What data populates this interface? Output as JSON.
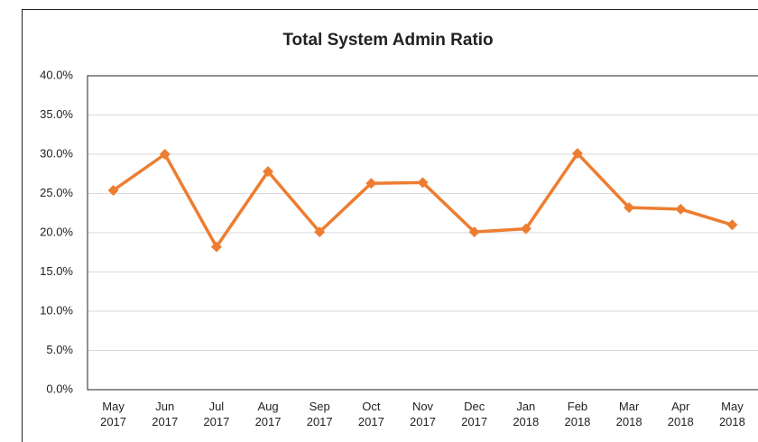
{
  "chart_data": {
    "type": "line",
    "title": "Total System Admin Ratio",
    "categories": [
      "May 2017",
      "Jun 2017",
      "Jul 2017",
      "Aug 2017",
      "Sep 2017",
      "Oct 2017",
      "Nov 2017",
      "Dec 2017",
      "Jan 2018",
      "Feb 2018",
      "Mar 2018",
      "Apr 2018",
      "May 2018"
    ],
    "values": [
      25.4,
      30.0,
      18.2,
      27.8,
      20.1,
      26.3,
      26.4,
      20.1,
      20.5,
      30.1,
      23.2,
      23.0,
      21.0
    ],
    "color": "#ed7d31",
    "ylim": [
      0,
      40
    ],
    "yticks": [
      {
        "value": 0,
        "label": "0.0%"
      },
      {
        "value": 5,
        "label": "5.0%"
      },
      {
        "value": 10,
        "label": "10.0%"
      },
      {
        "value": 15,
        "label": "15.0%"
      },
      {
        "value": 20,
        "label": "20.0%"
      },
      {
        "value": 25,
        "label": "25.0%"
      },
      {
        "value": 30,
        "label": "30.0%"
      },
      {
        "value": 35,
        "label": "35.0%"
      },
      {
        "value": 40,
        "label": "40.0%"
      }
    ],
    "grid": true
  }
}
